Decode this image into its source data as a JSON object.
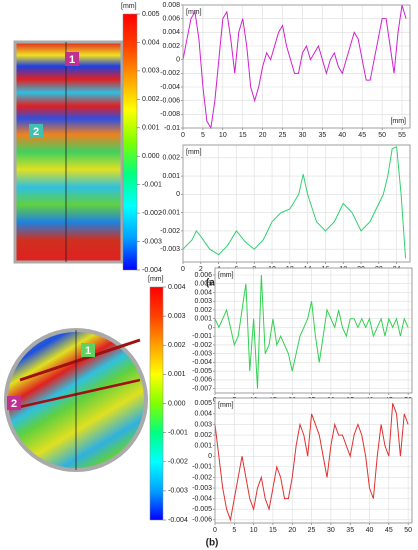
{
  "chart_data": [
    {
      "type": "colorbar",
      "unit": "[mm]",
      "ylim": [
        -0.004,
        0.005
      ],
      "yticks": [
        0.005,
        0.004,
        0.003,
        0.002,
        0.001,
        {
          "value": 0,
          "label": "0.000"
        },
        -0.001,
        -0.002,
        -0.003,
        -0.004
      ],
      "colors": [
        "#0000ff",
        "#00a0ff",
        "#00ffff",
        "#00ff80",
        "#80ff00",
        "#ffff00",
        "#ffa000",
        "#ff4000",
        "#ff0000"
      ]
    },
    {
      "type": "line",
      "y_unit": "[mm]",
      "x_unit": "[mm]",
      "grid": true,
      "xlim": [
        0,
        57
      ],
      "xticks": [
        0,
        5,
        10,
        15,
        20,
        25,
        30,
        35,
        40,
        45,
        50,
        55
      ],
      "ylim": [
        -0.01,
        0.008
      ],
      "yticks": [
        0.008,
        0.006,
        0.004,
        0.002,
        0,
        -0.002,
        -0.004,
        -0.006,
        -0.008,
        -0.01
      ],
      "series": [
        {
          "color": "#d020d0",
          "x": [
            0,
            2,
            3,
            4,
            5,
            6,
            7,
            8,
            9,
            10,
            11,
            12,
            13,
            14,
            15,
            16,
            17,
            18,
            19,
            20,
            21,
            22,
            23,
            24,
            25,
            26,
            27,
            28,
            29,
            30,
            31,
            32,
            33,
            34,
            35,
            36,
            37,
            38,
            39,
            40,
            41,
            42,
            43,
            44,
            45,
            46,
            47,
            48,
            49,
            50,
            51,
            52,
            53,
            54,
            55,
            56
          ],
          "values": [
            0,
            0.006,
            0.007,
            0.003,
            -0.004,
            -0.009,
            -0.01,
            -0.006,
            0,
            0.006,
            0.007,
            0.003,
            -0.002,
            0.004,
            0.006,
            0.002,
            -0.004,
            -0.006,
            -0.004,
            -0.001,
            0.001,
            0,
            0.002,
            0.004,
            0.005,
            0.002,
            0,
            -0.002,
            -0.002,
            0.001,
            0.002,
            0,
            0.001,
            0.002,
            0,
            -0.002,
            0,
            0.001,
            -0.001,
            -0.002,
            0,
            0.002,
            0.004,
            0.003,
            0,
            -0.003,
            -0.003,
            0,
            0.003,
            0.006,
            0.006,
            0.002,
            -0.002,
            0.004,
            0.008,
            0.006
          ]
        }
      ]
    },
    {
      "type": "line",
      "y_unit": "[mm]",
      "grid": true,
      "xlim": [
        0,
        25.5
      ],
      "xticks": [
        0,
        2,
        4,
        6,
        8,
        10,
        12,
        14,
        16,
        18,
        20,
        22,
        24
      ],
      "ylim": [
        -0.0037,
        0.0027
      ],
      "yticks": [
        0.002,
        0.001,
        0,
        -0.001,
        -0.002,
        -0.003
      ],
      "series": [
        {
          "color": "#30d070",
          "x": [
            0,
            1,
            1.5,
            2,
            3,
            4,
            5,
            6,
            7,
            8,
            9,
            10,
            11,
            12,
            13,
            13.5,
            14,
            15,
            16,
            17,
            18,
            19,
            20,
            21,
            22,
            22.5,
            23,
            23.5,
            24,
            24.5,
            25
          ],
          "values": [
            -0.003,
            -0.0025,
            -0.002,
            -0.0023,
            -0.003,
            -0.0033,
            -0.0028,
            -0.002,
            -0.0026,
            -0.003,
            -0.0025,
            -0.0015,
            -0.001,
            -0.0008,
            0,
            0.0011,
            0,
            -0.0015,
            -0.002,
            -0.0015,
            -0.0005,
            -0.001,
            -0.002,
            -0.0015,
            -0.0005,
            0,
            0.001,
            0.0025,
            0.0026,
            0,
            -0.0035
          ]
        }
      ]
    },
    {
      "type": "colorbar",
      "unit": "[mm]",
      "ylim": [
        -0.004,
        0.004
      ],
      "yticks": [
        0.004,
        0.003,
        0.002,
        0.001,
        {
          "value": 0,
          "label": "0.000"
        },
        -0.001,
        -0.002,
        -0.003,
        -0.004
      ],
      "colors": [
        "#0000ff",
        "#00a0ff",
        "#00ffff",
        "#00ff80",
        "#80ff00",
        "#ffff00",
        "#ffa000",
        "#ff4000",
        "#ff0000"
      ]
    },
    {
      "type": "line",
      "y_unit": "[mm]",
      "grid": true,
      "xlim": [
        0,
        51
      ],
      "xticks": [
        0,
        5,
        10,
        15,
        20,
        25,
        30,
        35,
        40,
        45,
        50
      ],
      "ylim": [
        -0.0075,
        0.0068
      ],
      "yticks": [
        0.006,
        0.005,
        0.004,
        0.003,
        0.002,
        0.001,
        0,
        -0.001,
        -0.002,
        -0.003,
        -0.004,
        -0.005,
        -0.006,
        -0.007
      ],
      "series": [
        {
          "color": "#30d050",
          "x": [
            0,
            1,
            2,
            3,
            4,
            5,
            6,
            7,
            8,
            9,
            10,
            11,
            12,
            13,
            14,
            15,
            16,
            17,
            18,
            19,
            20,
            21,
            22,
            23,
            24,
            25,
            26,
            27,
            28,
            29,
            30,
            31,
            32,
            33,
            34,
            35,
            36,
            37,
            38,
            39,
            40,
            41,
            42,
            43,
            44,
            45,
            46,
            47,
            48,
            49,
            50
          ],
          "values": [
            0.001,
            0,
            0.001,
            0.002,
            0,
            -0.002,
            -0.001,
            0.002,
            0.005,
            -0.005,
            0.001,
            -0.007,
            0.006,
            -0.003,
            -0.002,
            0.001,
            -0.002,
            -0.001,
            -0.002,
            -0.003,
            -0.005,
            -0.003,
            -0.001,
            0,
            0.001,
            0.003,
            -0.001,
            -0.004,
            -0.001,
            0.002,
            0.001,
            0,
            0.002,
            0,
            -0.001,
            0.001,
            0.001,
            0,
            0.001,
            0,
            0.001,
            -0.001,
            0,
            0.001,
            -0.001,
            0.001,
            0,
            0.001,
            -0.001,
            0.001,
            0
          ]
        }
      ]
    },
    {
      "type": "line",
      "y_unit": "[mm]",
      "grid": true,
      "xlim": [
        0,
        51
      ],
      "xticks": [
        0,
        5,
        10,
        15,
        20,
        25,
        30,
        35,
        40,
        45,
        50
      ],
      "ylim": [
        -0.0063,
        0.0055
      ],
      "yticks": [
        0.005,
        0.004,
        0.003,
        0.002,
        0.001,
        0,
        -0.001,
        -0.002,
        -0.003,
        -0.004,
        -0.005,
        -0.006
      ],
      "series": [
        {
          "color": "#e03030",
          "x": [
            0,
            1,
            2,
            3,
            4,
            5,
            6,
            7,
            8,
            9,
            10,
            11,
            12,
            13,
            14,
            15,
            16,
            17,
            18,
            19,
            20,
            21,
            22,
            23,
            24,
            25,
            26,
            27,
            28,
            29,
            30,
            31,
            32,
            33,
            34,
            35,
            36,
            37,
            38,
            39,
            40,
            41,
            42,
            43,
            44,
            45,
            46,
            47,
            48,
            49,
            50
          ],
          "values": [
            0.003,
            0,
            -0.003,
            -0.005,
            -0.006,
            -0.004,
            -0.002,
            0,
            -0.002,
            -0.004,
            -0.005,
            -0.003,
            -0.002,
            -0.004,
            -0.005,
            -0.003,
            -0.001,
            -0.002,
            -0.004,
            -0.004,
            -0.002,
            0.001,
            0.003,
            0.002,
            0,
            0.004,
            0.003,
            0.002,
            0,
            -0.002,
            0.001,
            0.003,
            0.002,
            0.002,
            0.001,
            0,
            0.002,
            0.003,
            0.002,
            0,
            -0.003,
            -0.004,
            0,
            0.003,
            0.001,
            0,
            0.005,
            0.004,
            0,
            0.004,
            0.003
          ]
        }
      ]
    }
  ],
  "panels": [
    {
      "label": "(a)",
      "markers": [
        "1",
        "2"
      ]
    },
    {
      "label": "(b)",
      "markers": [
        "1",
        "2"
      ]
    }
  ]
}
